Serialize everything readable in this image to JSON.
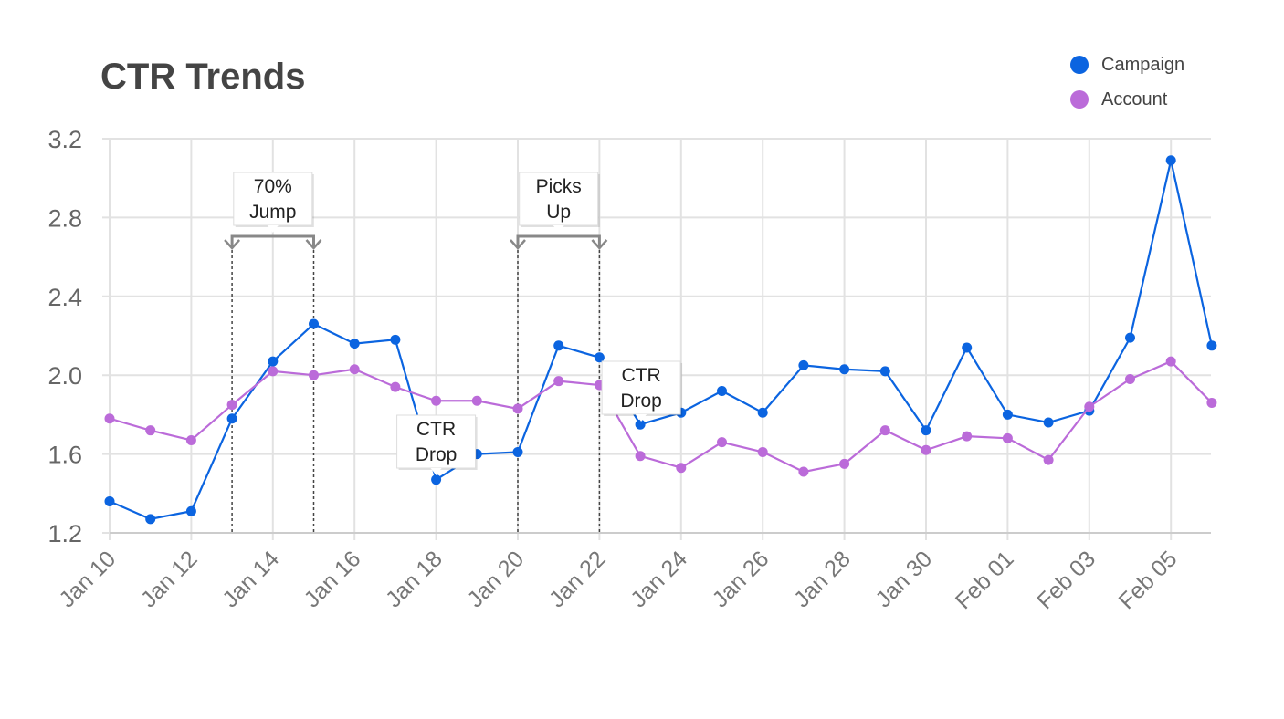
{
  "chart_data": {
    "type": "line",
    "title": "CTR Trends",
    "x": [
      "Jan 10",
      "Jan 11",
      "Jan 12",
      "Jan 13",
      "Jan 14",
      "Jan 15",
      "Jan 16",
      "Jan 17",
      "Jan 18",
      "Jan 19",
      "Jan 20",
      "Jan 21",
      "Jan 22",
      "Jan 23",
      "Jan 24",
      "Jan 25",
      "Jan 26",
      "Jan 27",
      "Jan 28",
      "Jan 29",
      "Jan 30",
      "Jan 31",
      "Feb 01",
      "Feb 02",
      "Feb 03",
      "Feb 04",
      "Feb 05",
      "Feb 06"
    ],
    "x_tick_labels": [
      "Jan 10",
      "Jan 12",
      "Jan 14",
      "Jan 16",
      "Jan 18",
      "Jan 20",
      "Jan 22",
      "Jan 24",
      "Jan 26",
      "Jan 28",
      "Jan 30",
      "Feb 01",
      "Feb 03",
      "Feb 05"
    ],
    "ylim": [
      1.2,
      3.2
    ],
    "y_ticks": [
      "1.2",
      "1.6",
      "2.0",
      "2.4",
      "2.8",
      "3.2"
    ],
    "grid": true,
    "legend_position": "top-right",
    "series": [
      {
        "name": "Campaign",
        "color": "#0b64e0",
        "values": [
          1.36,
          1.27,
          1.31,
          1.78,
          2.07,
          2.26,
          2.16,
          2.18,
          1.47,
          1.6,
          1.61,
          2.15,
          2.09,
          1.75,
          1.81,
          1.92,
          1.81,
          2.05,
          2.03,
          2.02,
          1.72,
          2.14,
          1.8,
          1.76,
          1.82,
          2.19,
          3.09,
          2.15
        ]
      },
      {
        "name": "Account",
        "color": "#bb6bd9",
        "values": [
          1.78,
          1.72,
          1.67,
          1.85,
          2.02,
          2.0,
          2.03,
          1.94,
          1.87,
          1.87,
          1.83,
          1.97,
          1.95,
          1.59,
          1.53,
          1.66,
          1.61,
          1.51,
          1.55,
          1.72,
          1.62,
          1.69,
          1.68,
          1.57,
          1.84,
          1.98,
          2.07,
          1.86
        ]
      }
    ],
    "annotations": [
      {
        "type": "range",
        "text": [
          "70%",
          "Jump"
        ],
        "x_start": "Jan 13",
        "x_end": "Jan 15"
      },
      {
        "type": "range",
        "text": [
          "Picks",
          "Up"
        ],
        "x_start": "Jan 20",
        "x_end": "Jan 22"
      },
      {
        "type": "callout",
        "text": [
          "CTR",
          "Drop"
        ],
        "x": "Jan 18",
        "series": "Campaign",
        "placement": "above"
      },
      {
        "type": "callout",
        "text": [
          "CTR",
          "Drop"
        ],
        "x": "Jan 23",
        "series": "Campaign",
        "placement": "above"
      }
    ]
  }
}
